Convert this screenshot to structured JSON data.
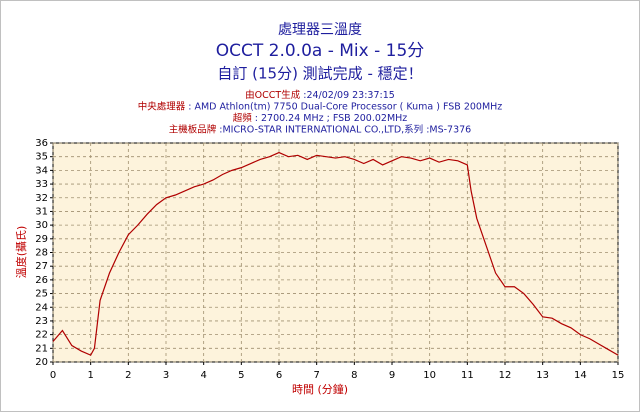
{
  "chart_data": {
    "type": "line",
    "title": "處理器三溫度",
    "subtitle": "OCCT 2.0.0a - Mix - 15分",
    "status": "自訂 (15分) 測試完成 - 穩定！",
    "info": [
      {
        "label": "由OCCT生成",
        "text": " :24/02/09 23:37:15"
      },
      {
        "label": "中央處理器",
        "text": " : AMD Athlon(tm) 7750 Dual-Core Processor ( Kuma ) FSB 200MHz"
      },
      {
        "label": "超頻",
        "text": " : 2700.24 MHz ; FSB 200.02MHz"
      },
      {
        "label": "主機板品牌",
        "text": " :MICRO-STAR INTERNATIONAL CO.,LTD,系列 :MS-7376"
      }
    ],
    "xlabel": "時間 (分鐘)",
    "ylabel": "溫度(攝氏)",
    "x": [
      0,
      0.25,
      0.5,
      0.75,
      1,
      1.1,
      1.25,
      1.5,
      1.75,
      2,
      2.25,
      2.5,
      2.75,
      3,
      3.25,
      3.5,
      3.75,
      4,
      4.25,
      4.5,
      4.75,
      5,
      5.25,
      5.5,
      5.75,
      6,
      6.25,
      6.5,
      6.75,
      7,
      7.25,
      7.5,
      7.75,
      8,
      8.25,
      8.5,
      8.75,
      9,
      9.25,
      9.5,
      9.75,
      10,
      10.25,
      10.5,
      10.75,
      11,
      11.1,
      11.25,
      11.5,
      11.75,
      12,
      12.25,
      12.5,
      12.75,
      13,
      13.25,
      13.5,
      13.75,
      14,
      14.25,
      14.5,
      14.75,
      15
    ],
    "series": [
      {
        "name": "溫度",
        "color": "#b00000",
        "values": [
          21.5,
          22.3,
          21.2,
          20.8,
          20.5,
          21,
          24.5,
          26.5,
          28,
          29.3,
          30,
          30.8,
          31.5,
          32,
          32.2,
          32.5,
          32.8,
          33,
          33.3,
          33.7,
          34,
          34.2,
          34.5,
          34.8,
          35,
          35.3,
          35,
          35.1,
          34.8,
          35.1,
          35,
          34.9,
          35,
          34.8,
          34.5,
          34.8,
          34.4,
          34.7,
          35,
          34.9,
          34.7,
          34.9,
          34.6,
          34.8,
          34.7,
          34.4,
          32.5,
          30.5,
          28.5,
          26.5,
          25.5,
          25.5,
          25,
          24.2,
          23.3,
          23.2,
          22.8,
          22.5,
          22,
          21.7,
          21.3,
          20.9,
          20.5
        ]
      }
    ],
    "xlim": [
      0,
      15
    ],
    "ylim": [
      20,
      36
    ],
    "xticks": [
      0,
      1,
      2,
      3,
      4,
      5,
      6,
      7,
      8,
      9,
      10,
      11,
      12,
      13,
      14,
      15
    ],
    "yticks": [
      20,
      21,
      22,
      23,
      24,
      25,
      26,
      27,
      28,
      29,
      30,
      31,
      32,
      33,
      34,
      35,
      36
    ],
    "grid": true
  }
}
